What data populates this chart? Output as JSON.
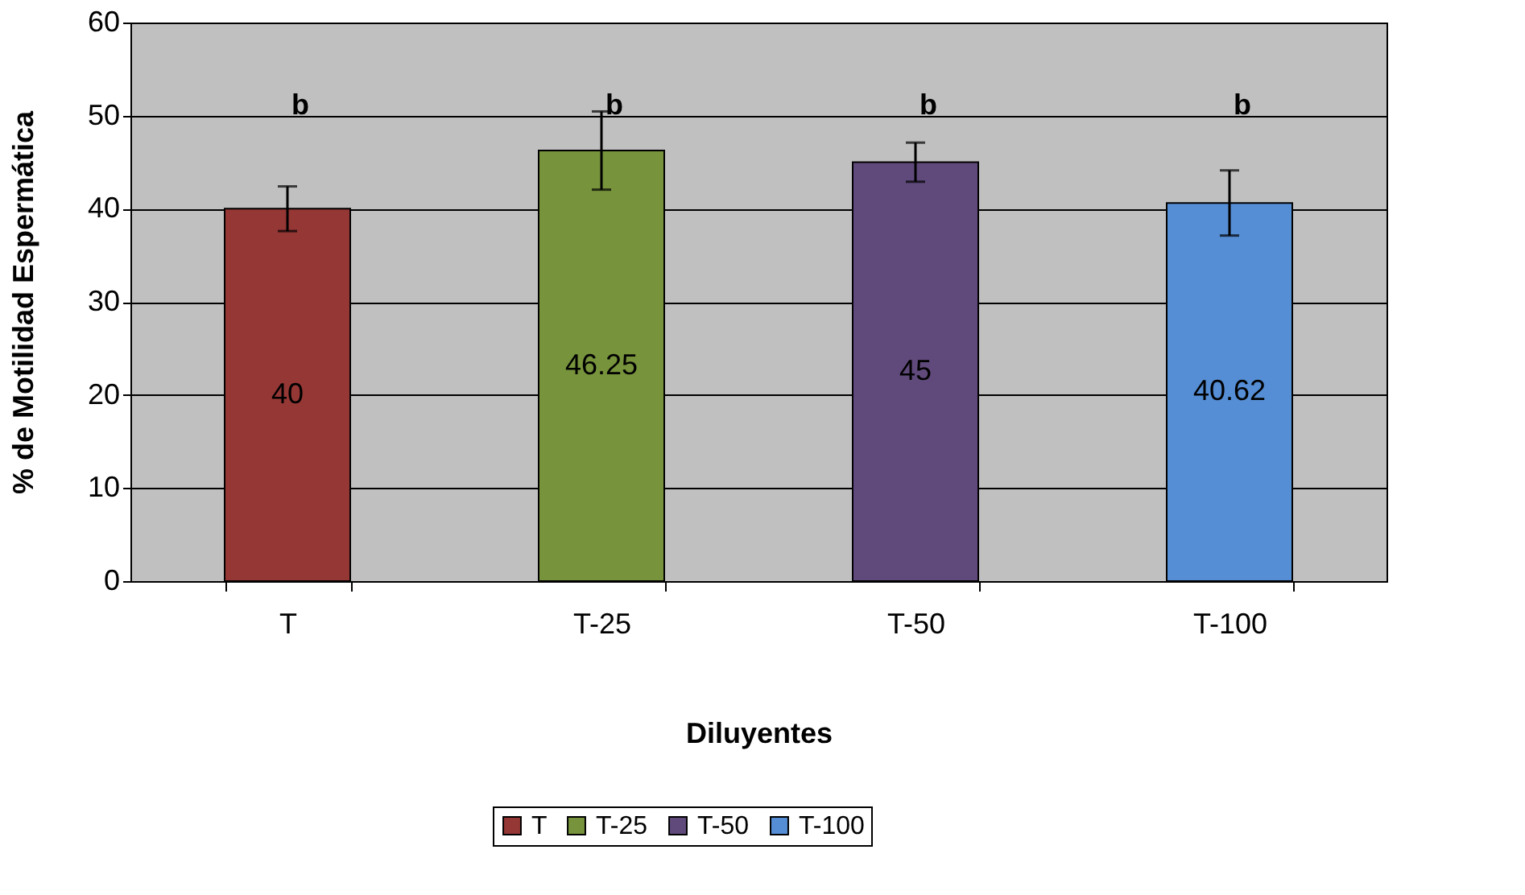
{
  "chart_data": {
    "type": "bar",
    "xlabel": "Diluyentes",
    "ylabel": "% de Motilidad Espermática",
    "categories": [
      "T",
      "T-25",
      "T-50",
      "T-100"
    ],
    "stacked": true,
    "series": [
      {
        "name": "T",
        "color": "#953735",
        "values": [
          40,
          null,
          null,
          null
        ],
        "errors": [
          2.4,
          null,
          null,
          null
        ]
      },
      {
        "name": "T-25",
        "color": "#77933c",
        "values": [
          null,
          46.25,
          null,
          null
        ],
        "errors": [
          null,
          4.2,
          null,
          null
        ]
      },
      {
        "name": "T-50",
        "color": "#604a7b",
        "values": [
          null,
          null,
          45,
          null
        ],
        "errors": [
          null,
          null,
          2.1,
          null
        ]
      },
      {
        "name": "T-100",
        "color": "#558ed5",
        "values": [
          null,
          null,
          null,
          40.62
        ],
        "errors": [
          null,
          null,
          null,
          3.5
        ]
      }
    ],
    "data_labels": true,
    "annotations": [
      "b",
      "b",
      "b",
      "b"
    ],
    "ylim": [
      0,
      60
    ],
    "yticks": [
      0,
      10,
      20,
      30,
      40,
      50,
      60
    ],
    "grid": "y",
    "legend": "bottom"
  }
}
